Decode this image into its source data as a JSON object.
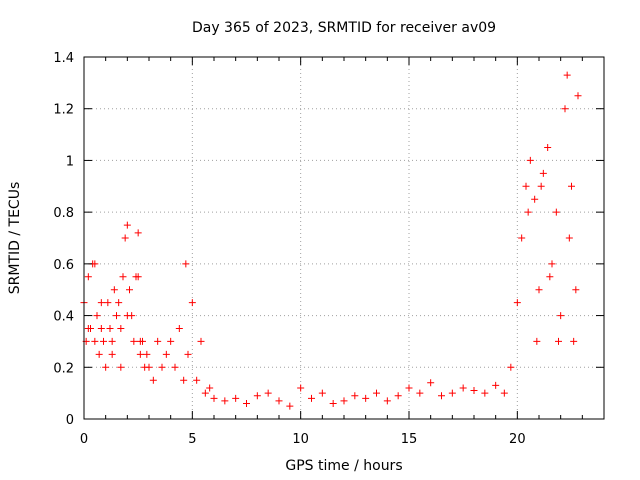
{
  "chart_data": {
    "type": "scatter",
    "title": "Day 365 of 2023, SRMTID for receiver av09",
    "xlabel": "GPS time / hours",
    "ylabel": "SRMTID / TECUs",
    "xlim": [
      0,
      24
    ],
    "ylim": [
      0,
      1.4
    ],
    "xticks": [
      0,
      5,
      10,
      15,
      20
    ],
    "xtick_labels": [
      "0",
      "5",
      "10",
      "15",
      "20"
    ],
    "yticks": [
      0,
      0.2,
      0.4,
      0.6,
      0.8,
      1.0,
      1.2,
      1.4
    ],
    "ytick_labels": [
      "0",
      "0.2",
      "0.4",
      "0.6",
      "0.8",
      "1",
      "1.2",
      "1.4"
    ],
    "grid": true,
    "marker": "+",
    "colors": {
      "points": "#ff0000",
      "grid": "#a0a0a0",
      "axes": "#000000"
    },
    "series": [
      {
        "name": "SRMTID",
        "x": [
          0.0,
          0.1,
          0.2,
          0.3,
          0.4,
          0.5,
          0.6,
          0.7,
          0.8,
          0.9,
          1.0,
          1.1,
          1.2,
          1.3,
          1.4,
          1.5,
          1.6,
          1.7,
          1.8,
          1.9,
          2.0,
          2.1,
          2.2,
          2.3,
          2.4,
          2.5,
          2.6,
          2.7,
          2.8,
          2.9,
          3.0,
          3.2,
          3.4,
          3.6,
          3.8,
          4.0,
          4.2,
          4.4,
          4.6,
          4.8,
          5.0,
          5.2,
          5.4,
          5.6,
          5.8,
          6.0,
          6.5,
          7.0,
          7.5,
          8.0,
          8.5,
          9.0,
          9.5,
          10.0,
          10.5,
          11.0,
          11.5,
          12.0,
          12.5,
          13.0,
          13.5,
          14.0,
          14.5,
          15.0,
          15.5,
          16.0,
          16.5,
          17.0,
          17.5,
          18.0,
          18.5,
          19.0,
          19.4,
          19.7,
          20.0,
          20.2,
          20.4,
          20.6,
          20.8,
          21.0,
          21.2,
          21.4,
          21.6,
          21.8,
          22.0,
          22.2,
          22.4,
          22.6,
          22.8,
          0.2,
          0.5,
          0.8,
          1.3,
          1.7,
          2.0,
          2.5,
          2.6,
          4.7,
          20.5,
          20.9,
          21.1,
          21.5,
          21.9,
          22.3,
          22.5,
          22.7
        ],
        "y": [
          0.45,
          0.3,
          0.55,
          0.35,
          0.6,
          0.3,
          0.4,
          0.25,
          0.35,
          0.3,
          0.2,
          0.45,
          0.35,
          0.3,
          0.5,
          0.4,
          0.45,
          0.2,
          0.55,
          0.7,
          0.75,
          0.5,
          0.4,
          0.3,
          0.55,
          0.72,
          0.25,
          0.3,
          0.2,
          0.25,
          0.2,
          0.15,
          0.3,
          0.2,
          0.25,
          0.3,
          0.2,
          0.35,
          0.15,
          0.25,
          0.45,
          0.15,
          0.3,
          0.1,
          0.12,
          0.08,
          0.07,
          0.08,
          0.06,
          0.09,
          0.1,
          0.07,
          0.05,
          0.12,
          0.08,
          0.1,
          0.06,
          0.07,
          0.09,
          0.08,
          0.1,
          0.07,
          0.09,
          0.12,
          0.1,
          0.14,
          0.09,
          0.1,
          0.12,
          0.11,
          0.1,
          0.13,
          0.1,
          0.2,
          0.45,
          0.7,
          0.9,
          1.0,
          0.85,
          0.5,
          0.95,
          1.05,
          0.6,
          0.8,
          0.4,
          1.2,
          0.7,
          0.3,
          1.25,
          0.35,
          0.6,
          0.45,
          0.25,
          0.35,
          0.4,
          0.55,
          0.3,
          0.6,
          0.8,
          0.3,
          0.9,
          0.55,
          0.3,
          1.33,
          0.9,
          0.5
        ]
      }
    ]
  }
}
